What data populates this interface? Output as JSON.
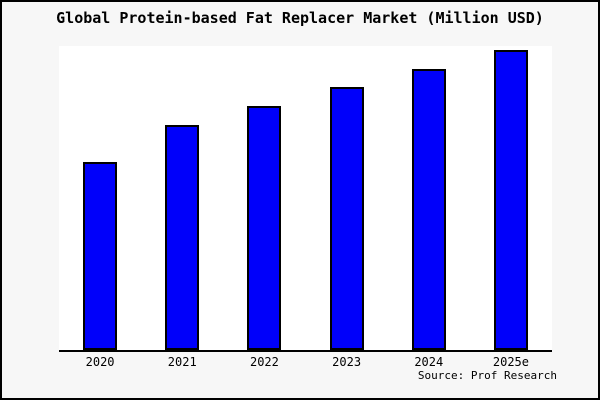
{
  "chart_data": {
    "type": "bar",
    "title": "Global Protein-based Fat Replacer Market (Million USD)",
    "categories": [
      "2020",
      "2021",
      "2022",
      "2023",
      "2024",
      "2025e"
    ],
    "values": [
      62.7,
      75.0,
      81.3,
      87.7,
      93.7,
      100.0
    ],
    "values_note": "No y-axis scale shown in chart; values are estimated relative bar heights as % of tallest bar (2025e = 100)",
    "source": "Source: Prof Research",
    "xlabel": "",
    "ylabel": "",
    "ylim": [
      0,
      100
    ],
    "y_axis_visible": false,
    "gridlines": false,
    "legend": false,
    "colors": {
      "bar_fill": "#0000fa",
      "bar_edge": "#000000",
      "figure_background": "#f7f7f7",
      "plot_background": "#ffffff",
      "axis_line": "#000000",
      "text": "#000000",
      "outer_border": "#000000"
    }
  }
}
